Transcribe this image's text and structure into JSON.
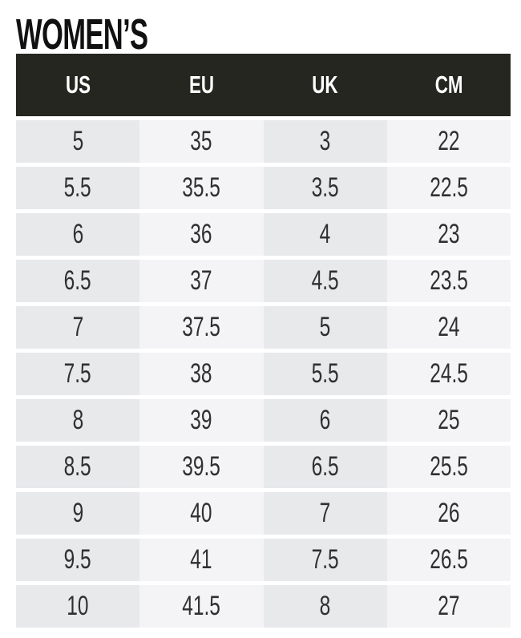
{
  "title": "WOMEN’S",
  "colors": {
    "header_bg": "#262621",
    "header_text": "#ffffff",
    "cell_dark": "#e8e9eb",
    "cell_light": "#f4f4f6",
    "body_text": "#303030",
    "title_text": "#111111",
    "page_bg": "#ffffff"
  },
  "chart_data": {
    "type": "table",
    "title": "WOMEN’S",
    "columns": [
      "US",
      "EU",
      "UK",
      "CM"
    ],
    "rows": [
      [
        "5",
        "35",
        "3",
        "22"
      ],
      [
        "5.5",
        "35.5",
        "3.5",
        "22.5"
      ],
      [
        "6",
        "36",
        "4",
        "23"
      ],
      [
        "6.5",
        "37",
        "4.5",
        "23.5"
      ],
      [
        "7",
        "37.5",
        "5",
        "24"
      ],
      [
        "7.5",
        "38",
        "5.5",
        "24.5"
      ],
      [
        "8",
        "39",
        "6",
        "25"
      ],
      [
        "8.5",
        "39.5",
        "6.5",
        "25.5"
      ],
      [
        "9",
        "40",
        "7",
        "26"
      ],
      [
        "9.5",
        "41",
        "7.5",
        "26.5"
      ],
      [
        "10",
        "41.5",
        "8",
        "27"
      ]
    ]
  }
}
